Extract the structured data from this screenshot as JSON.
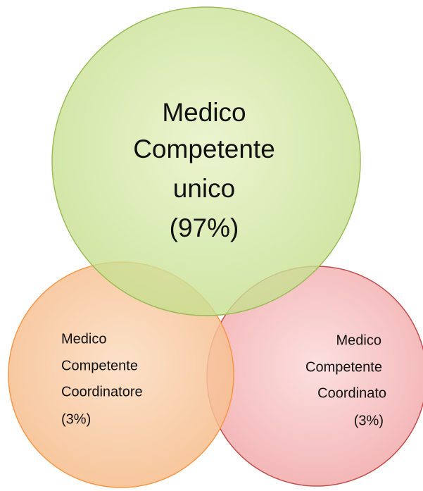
{
  "nodes": [
    {
      "lines": [
        "Medico",
        "Competente",
        "unico",
        "(97%)"
      ]
    },
    {
      "lines": [
        "Medico",
        "Competente",
        "Coordinatore",
        "(3%)"
      ]
    },
    {
      "lines": [
        "Medico",
        "Competente",
        "Coordinato",
        "(3%)"
      ]
    }
  ]
}
